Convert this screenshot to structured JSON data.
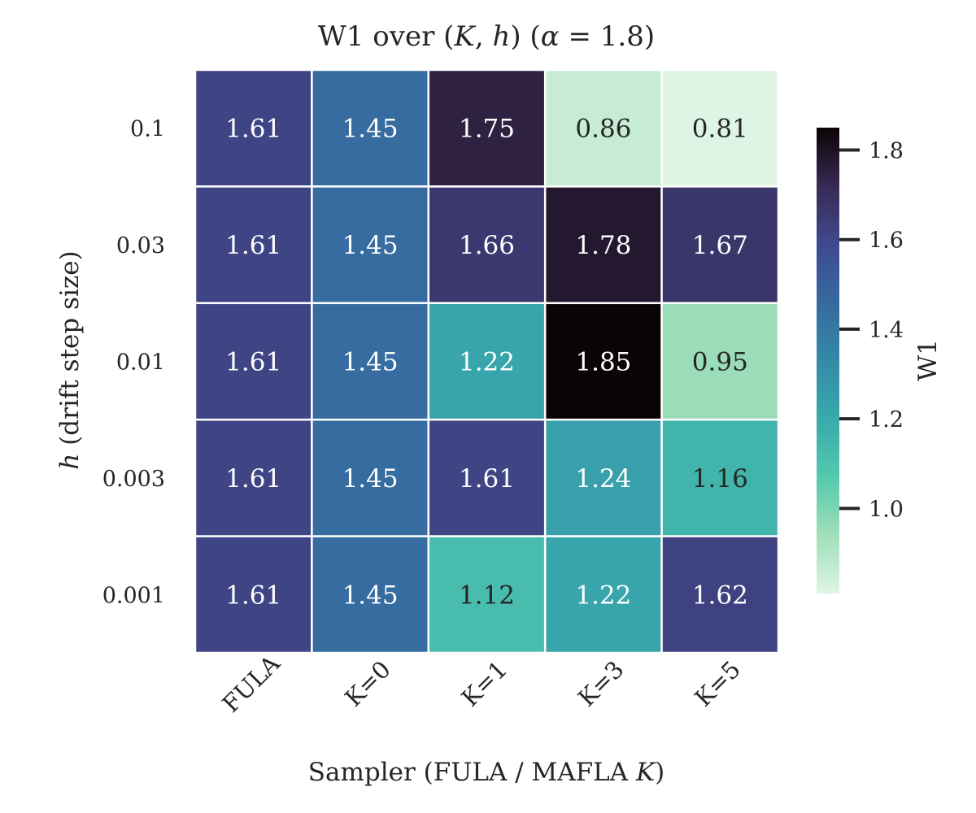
{
  "chart_data": {
    "type": "heatmap",
    "title_parts": {
      "prefix": "W1 over (",
      "var1": "K",
      "sep": ", ",
      "var2": "h",
      "mid": ") (",
      "alpha": "α",
      "eq": " = 1.8)"
    },
    "xlabel_parts": {
      "text": "Sampler (FULA / MAFLA ",
      "var": "K",
      "close": ")"
    },
    "ylabel_parts": {
      "var": "h",
      "text": " (drift step size)"
    },
    "x_categories": [
      "FULA",
      "K=0",
      "K=1",
      "K=3",
      "K=5"
    ],
    "y_categories": [
      "0.1",
      "0.03",
      "0.01",
      "0.003",
      "0.001"
    ],
    "values": [
      [
        1.61,
        1.45,
        1.75,
        0.86,
        0.81
      ],
      [
        1.61,
        1.45,
        1.66,
        1.78,
        1.67
      ],
      [
        1.61,
        1.45,
        1.22,
        1.85,
        0.95
      ],
      [
        1.61,
        1.45,
        1.61,
        1.24,
        1.16
      ],
      [
        1.61,
        1.45,
        1.12,
        1.22,
        1.62
      ]
    ],
    "value_labels": [
      [
        "1.61",
        "1.45",
        "1.75",
        "0.86",
        "0.81"
      ],
      [
        "1.61",
        "1.45",
        "1.66",
        "1.78",
        "1.67"
      ],
      [
        "1.61",
        "1.45",
        "1.22",
        "1.85",
        "0.95"
      ],
      [
        "1.61",
        "1.45",
        "1.61",
        "1.24",
        "1.16"
      ],
      [
        "1.61",
        "1.45",
        "1.12",
        "1.22",
        "1.62"
      ]
    ],
    "colorbar": {
      "label": "W1",
      "range": [
        0.81,
        1.85
      ],
      "ticks": [
        1.0,
        1.2,
        1.4,
        1.6,
        1.8
      ],
      "tick_labels": [
        "1.0",
        "1.2",
        "1.4",
        "1.6",
        "1.8"
      ],
      "colormap": "mako_r",
      "stops": [
        "#def5e5",
        "#a0dfb9",
        "#54c9ad",
        "#38aaac",
        "#348aa6",
        "#366a9f",
        "#40498e",
        "#382a54",
        "#0b0405"
      ]
    }
  }
}
